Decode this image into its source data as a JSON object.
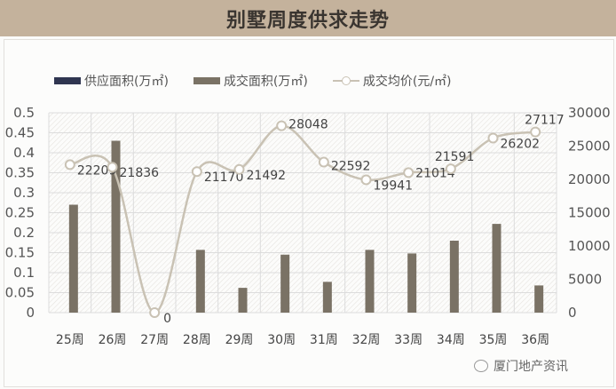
{
  "title": "别墅周度供求走势",
  "legend": [
    {
      "label": "供应面积(万㎡)",
      "color": "#2f3550",
      "type": "bar"
    },
    {
      "label": "成交面积(万㎡)",
      "color": "#7a7265",
      "type": "bar"
    },
    {
      "label": "成交均价(元/㎡)",
      "color": "#c9c2b4",
      "type": "line"
    }
  ],
  "logo_text": "厦门地产资讯",
  "chart_data": {
    "type": "bar",
    "title": "别墅周度供求走势",
    "categories": [
      "25周",
      "26周",
      "27周",
      "28周",
      "29周",
      "30周",
      "31周",
      "32周",
      "33周",
      "34周",
      "35周",
      "36周"
    ],
    "series": [
      {
        "name": "供应面积(万㎡)",
        "axis": "left",
        "type": "bar",
        "values": [
          0,
          0,
          0,
          0,
          0,
          0,
          0,
          0,
          0,
          0,
          0,
          0
        ]
      },
      {
        "name": "成交面积(万㎡)",
        "axis": "left",
        "type": "bar",
        "values": [
          0.27,
          0.43,
          0,
          0.157,
          0.062,
          0.145,
          0.077,
          0.157,
          0.148,
          0.18,
          0.222,
          0.068
        ]
      },
      {
        "name": "成交均价(元/㎡)",
        "axis": "right",
        "type": "line",
        "values": [
          22209,
          21836,
          0,
          21170,
          21492,
          28048,
          22592,
          19941,
          21014,
          21591,
          26202,
          27117
        ]
      }
    ],
    "left_axis": {
      "ticks": [
        "0",
        "0.05",
        "0.1",
        "0.15",
        "0.2",
        "0.25",
        "0.3",
        "0.35",
        "0.4",
        "0.45",
        "0.5"
      ],
      "range": [
        0,
        0.5
      ]
    },
    "right_axis": {
      "ticks": [
        "0",
        "5000",
        "10000",
        "15000",
        "20000",
        "25000",
        "30000"
      ],
      "range": [
        0,
        30000
      ]
    },
    "xlabel": "",
    "ylabel": "",
    "grid": true,
    "legend_position": "top"
  }
}
